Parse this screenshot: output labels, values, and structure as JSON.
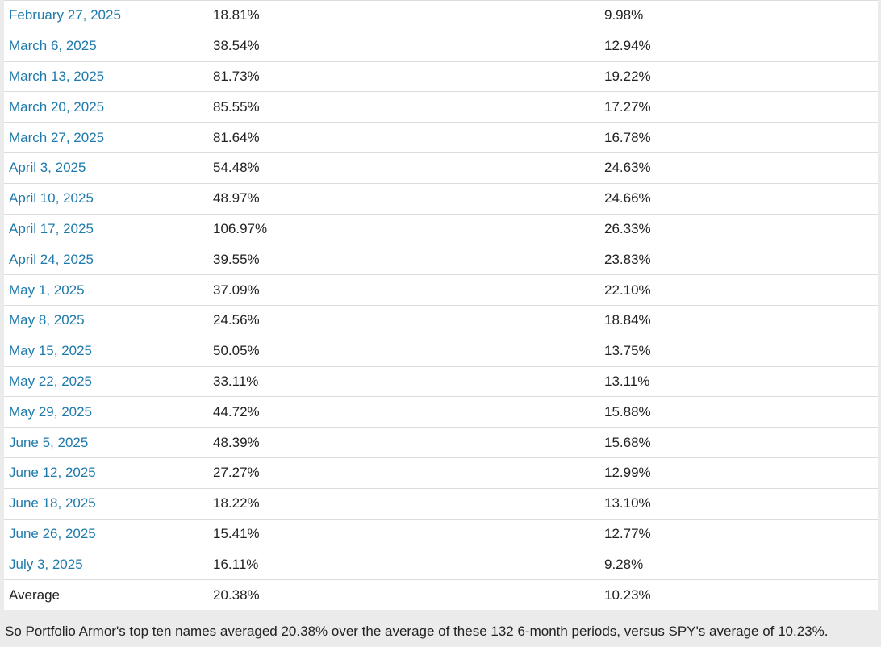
{
  "table": {
    "rows": [
      {
        "date": "February 27, 2025",
        "portfolio": "18.81%",
        "spy": "9.98%"
      },
      {
        "date": "March 6, 2025",
        "portfolio": "38.54%",
        "spy": "12.94%"
      },
      {
        "date": "March 13, 2025",
        "portfolio": "81.73%",
        "spy": "19.22%"
      },
      {
        "date": "March 20, 2025",
        "portfolio": "85.55%",
        "spy": "17.27%"
      },
      {
        "date": "March 27, 2025",
        "portfolio": "81.64%",
        "spy": "16.78%"
      },
      {
        "date": "April 3, 2025",
        "portfolio": "54.48%",
        "spy": "24.63%"
      },
      {
        "date": "April 10, 2025",
        "portfolio": "48.97%",
        "spy": "24.66%"
      },
      {
        "date": "April 17, 2025",
        "portfolio": "106.97%",
        "spy": "26.33%"
      },
      {
        "date": "April 24, 2025",
        "portfolio": "39.55%",
        "spy": "23.83%"
      },
      {
        "date": "May 1, 2025",
        "portfolio": "37.09%",
        "spy": "22.10%"
      },
      {
        "date": "May 8, 2025",
        "portfolio": "24.56%",
        "spy": "18.84%"
      },
      {
        "date": "May 15, 2025",
        "portfolio": "50.05%",
        "spy": "13.75%"
      },
      {
        "date": "May 22, 2025",
        "portfolio": "33.11%",
        "spy": "13.11%"
      },
      {
        "date": "May 29, 2025",
        "portfolio": "44.72%",
        "spy": "15.88%"
      },
      {
        "date": "June 5, 2025",
        "portfolio": "48.39%",
        "spy": "15.68%"
      },
      {
        "date": "June 12, 2025",
        "portfolio": "27.27%",
        "spy": "12.99%"
      },
      {
        "date": "June 18, 2025",
        "portfolio": "18.22%",
        "spy": "13.10%"
      },
      {
        "date": "June 26, 2025",
        "portfolio": "15.41%",
        "spy": "12.77%"
      },
      {
        "date": "July 3, 2025",
        "portfolio": "16.11%",
        "spy": "9.28%"
      }
    ],
    "average": {
      "label": "Average",
      "portfolio": "20.38%",
      "spy": "10.23%"
    }
  },
  "summary": "So Portfolio Armor's top ten names averaged 20.38% over the average of these 132 6-month periods, versus SPY's average of 10.23%.",
  "colors": {
    "link": "#1f7aab",
    "text": "#222222",
    "background": "#ebebeb",
    "table_background": "#ffffff",
    "row_border": "#dcdcdc"
  }
}
